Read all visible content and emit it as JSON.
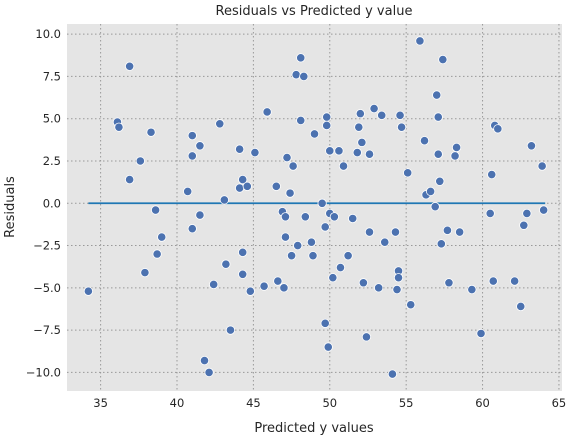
{
  "chart_data": {
    "type": "scatter",
    "title": "Residuals vs Predicted y value",
    "xlabel": "Predicted y values",
    "ylabel": "Residuals",
    "xlim": [
      32.8,
      65.2
    ],
    "ylim": [
      -11.1,
      10.6
    ],
    "xticks": [
      35,
      40,
      45,
      50,
      55,
      60,
      65
    ],
    "yticks": [
      -10.0,
      -7.5,
      -5.0,
      -2.5,
      0.0,
      2.5,
      5.0,
      7.5,
      10.0
    ],
    "xtick_labels": [
      "35",
      "40",
      "45",
      "50",
      "55",
      "60",
      "65"
    ],
    "ytick_labels": [
      "−10.0",
      "−7.5",
      "−5.0",
      "−2.5",
      "0.0",
      "2.5",
      "5.0",
      "7.5",
      "10.0"
    ],
    "grid": true,
    "reference_line": {
      "y": 0.0,
      "x": [
        34.2,
        64.1
      ],
      "color": "#1f77b4"
    },
    "colors": {
      "background": "#e5e5e5",
      "grid": "#999999",
      "points": "#4c72b0",
      "point_edge": "#ffffff"
    },
    "points": [
      {
        "x": 34.2,
        "y": -5.2
      },
      {
        "x": 36.1,
        "y": 4.8
      },
      {
        "x": 36.2,
        "y": 4.5
      },
      {
        "x": 36.9,
        "y": 8.1
      },
      {
        "x": 36.9,
        "y": 1.4
      },
      {
        "x": 37.6,
        "y": 2.5
      },
      {
        "x": 37.9,
        "y": -4.1
      },
      {
        "x": 38.3,
        "y": 4.2
      },
      {
        "x": 38.6,
        "y": -0.4
      },
      {
        "x": 38.7,
        "y": -3.0
      },
      {
        "x": 39.0,
        "y": -2.0
      },
      {
        "x": 40.7,
        "y": 0.7
      },
      {
        "x": 41.0,
        "y": 2.8
      },
      {
        "x": 41.0,
        "y": 4.0
      },
      {
        "x": 41.0,
        "y": -1.5
      },
      {
        "x": 41.5,
        "y": 3.4
      },
      {
        "x": 41.5,
        "y": -0.7
      },
      {
        "x": 41.8,
        "y": -9.3
      },
      {
        "x": 42.1,
        "y": -10.0
      },
      {
        "x": 42.4,
        "y": -4.8
      },
      {
        "x": 42.8,
        "y": 4.7
      },
      {
        "x": 43.1,
        "y": 0.2
      },
      {
        "x": 43.2,
        "y": -3.6
      },
      {
        "x": 43.5,
        "y": -7.5
      },
      {
        "x": 44.1,
        "y": 3.2
      },
      {
        "x": 44.1,
        "y": 0.9
      },
      {
        "x": 44.3,
        "y": 1.4
      },
      {
        "x": 44.3,
        "y": -2.9
      },
      {
        "x": 44.3,
        "y": -4.2
      },
      {
        "x": 44.6,
        "y": 1.0
      },
      {
        "x": 44.8,
        "y": -5.2
      },
      {
        "x": 45.1,
        "y": 3.0
      },
      {
        "x": 45.7,
        "y": -4.9
      },
      {
        "x": 45.9,
        "y": 5.4
      },
      {
        "x": 46.5,
        "y": 1.0
      },
      {
        "x": 46.6,
        "y": -4.6
      },
      {
        "x": 46.9,
        "y": -0.5
      },
      {
        "x": 47.1,
        "y": -0.8
      },
      {
        "x": 47.0,
        "y": -5.0
      },
      {
        "x": 47.1,
        "y": -2.0
      },
      {
        "x": 47.2,
        "y": 2.7
      },
      {
        "x": 47.4,
        "y": 0.6
      },
      {
        "x": 47.5,
        "y": -3.1
      },
      {
        "x": 47.6,
        "y": 2.2
      },
      {
        "x": 47.9,
        "y": -2.5
      },
      {
        "x": 47.8,
        "y": 7.6
      },
      {
        "x": 48.1,
        "y": 4.9
      },
      {
        "x": 48.1,
        "y": 8.6
      },
      {
        "x": 48.3,
        "y": 7.5
      },
      {
        "x": 48.4,
        "y": -0.8
      },
      {
        "x": 48.8,
        "y": -2.3
      },
      {
        "x": 48.9,
        "y": -3.1
      },
      {
        "x": 49.0,
        "y": 4.1
      },
      {
        "x": 49.5,
        "y": 0.0
      },
      {
        "x": 49.7,
        "y": -1.4
      },
      {
        "x": 49.7,
        "y": -7.1
      },
      {
        "x": 49.8,
        "y": 5.1
      },
      {
        "x": 49.8,
        "y": 4.6
      },
      {
        "x": 49.9,
        "y": -8.5
      },
      {
        "x": 50.0,
        "y": 3.1
      },
      {
        "x": 50.0,
        "y": -0.6
      },
      {
        "x": 50.2,
        "y": -4.4
      },
      {
        "x": 50.3,
        "y": -0.8
      },
      {
        "x": 50.6,
        "y": 3.1
      },
      {
        "x": 50.7,
        "y": -3.8
      },
      {
        "x": 50.9,
        "y": 2.2
      },
      {
        "x": 51.2,
        "y": -3.1
      },
      {
        "x": 51.5,
        "y": -0.9
      },
      {
        "x": 51.8,
        "y": 3.0
      },
      {
        "x": 51.9,
        "y": 4.5
      },
      {
        "x": 52.0,
        "y": 5.3
      },
      {
        "x": 52.1,
        "y": 3.6
      },
      {
        "x": 52.2,
        "y": -4.7
      },
      {
        "x": 52.4,
        "y": -7.9
      },
      {
        "x": 52.6,
        "y": 2.9
      },
      {
        "x": 52.6,
        "y": -1.7
      },
      {
        "x": 52.9,
        "y": 5.6
      },
      {
        "x": 53.2,
        "y": -5.0
      },
      {
        "x": 53.4,
        "y": 5.2
      },
      {
        "x": 53.6,
        "y": -2.3
      },
      {
        "x": 54.1,
        "y": -10.1
      },
      {
        "x": 54.3,
        "y": -1.7
      },
      {
        "x": 54.4,
        "y": -5.1
      },
      {
        "x": 54.5,
        "y": -4.0
      },
      {
        "x": 54.5,
        "y": -4.4
      },
      {
        "x": 54.6,
        "y": 5.2
      },
      {
        "x": 54.7,
        "y": 4.5
      },
      {
        "x": 55.1,
        "y": 1.8
      },
      {
        "x": 55.3,
        "y": -6.0
      },
      {
        "x": 55.9,
        "y": 9.6
      },
      {
        "x": 56.2,
        "y": 3.7
      },
      {
        "x": 56.3,
        "y": 0.5
      },
      {
        "x": 56.6,
        "y": 0.7
      },
      {
        "x": 56.9,
        "y": -0.2
      },
      {
        "x": 57.0,
        "y": 6.4
      },
      {
        "x": 57.1,
        "y": 5.1
      },
      {
        "x": 57.1,
        "y": 2.9
      },
      {
        "x": 57.2,
        "y": 1.3
      },
      {
        "x": 57.3,
        "y": -2.4
      },
      {
        "x": 57.4,
        "y": 8.5
      },
      {
        "x": 57.7,
        "y": -1.6
      },
      {
        "x": 57.8,
        "y": -4.7
      },
      {
        "x": 58.2,
        "y": 2.8
      },
      {
        "x": 58.3,
        "y": 3.3
      },
      {
        "x": 58.5,
        "y": -1.7
      },
      {
        "x": 59.3,
        "y": -5.1
      },
      {
        "x": 59.9,
        "y": -7.7
      },
      {
        "x": 60.5,
        "y": -0.6
      },
      {
        "x": 60.6,
        "y": 1.7
      },
      {
        "x": 60.7,
        "y": -4.6
      },
      {
        "x": 60.8,
        "y": 4.6
      },
      {
        "x": 61.0,
        "y": 4.4
      },
      {
        "x": 62.1,
        "y": -4.6
      },
      {
        "x": 62.5,
        "y": -6.1
      },
      {
        "x": 62.7,
        "y": -1.3
      },
      {
        "x": 62.9,
        "y": -0.6
      },
      {
        "x": 63.2,
        "y": 3.4
      },
      {
        "x": 63.9,
        "y": 2.2
      },
      {
        "x": 64.0,
        "y": -0.4
      }
    ]
  }
}
